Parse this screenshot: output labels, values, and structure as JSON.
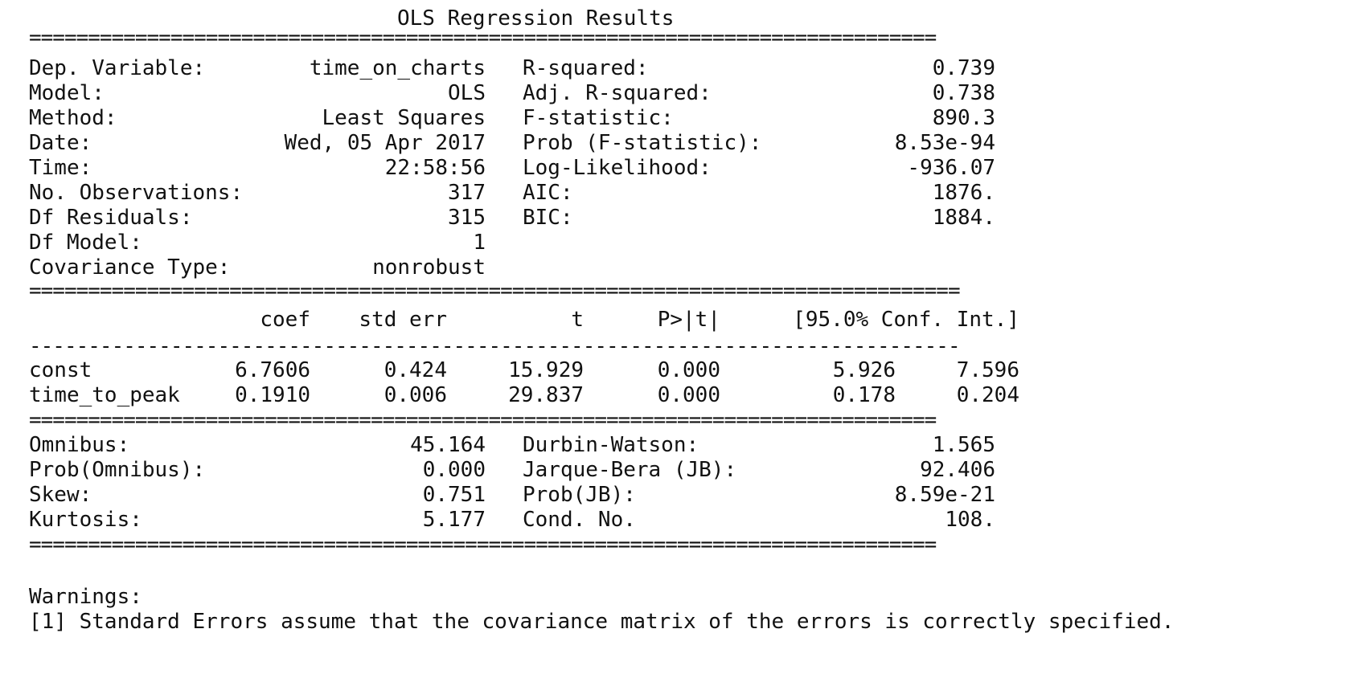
{
  "title": "OLS Regression Results",
  "separators": {
    "double_short": "=============================================================================",
    "double_long": "===============================================================================",
    "single_long": "-------------------------------------------------------------------------------"
  },
  "summary": {
    "left": [
      {
        "label": "Dep. Variable:",
        "value": "time_on_charts"
      },
      {
        "label": "Model:",
        "value": "OLS"
      },
      {
        "label": "Method:",
        "value": "Least Squares"
      },
      {
        "label": "Date:",
        "value": "Wed, 05 Apr 2017"
      },
      {
        "label": "Time:",
        "value": "22:58:56"
      },
      {
        "label": "No. Observations:",
        "value": "317"
      },
      {
        "label": "Df Residuals:",
        "value": "315"
      },
      {
        "label": "Df Model:",
        "value": "1"
      },
      {
        "label": "Covariance Type:",
        "value": "nonrobust"
      }
    ],
    "right": [
      {
        "label": "R-squared:",
        "value": "0.739"
      },
      {
        "label": "Adj. R-squared:",
        "value": "0.738"
      },
      {
        "label": "F-statistic:",
        "value": "890.3"
      },
      {
        "label": "Prob (F-statistic):",
        "value": "8.53e-94"
      },
      {
        "label": "Log-Likelihood:",
        "value": "-936.07"
      },
      {
        "label": "AIC:",
        "value": "1876."
      },
      {
        "label": "BIC:",
        "value": "1884."
      }
    ]
  },
  "coef_table": {
    "headers": [
      "coef",
      "std err",
      "t",
      "P>|t|",
      "[95.0% Conf. Int.]"
    ],
    "rows": [
      {
        "name": "const",
        "coef": "6.7606",
        "std_err": "0.424",
        "t": "15.929",
        "p": "0.000",
        "ci_low": "5.926",
        "ci_high": "7.596"
      },
      {
        "name": "time_to_peak",
        "coef": "0.1910",
        "std_err": "0.006",
        "t": "29.837",
        "p": "0.000",
        "ci_low": "0.178",
        "ci_high": "0.204"
      }
    ]
  },
  "diagnostics": {
    "left": [
      {
        "label": "Omnibus:",
        "value": "45.164"
      },
      {
        "label": "Prob(Omnibus):",
        "value": "0.000"
      },
      {
        "label": "Skew:",
        "value": "0.751"
      },
      {
        "label": "Kurtosis:",
        "value": "5.177"
      }
    ],
    "right": [
      {
        "label": "Durbin-Watson:",
        "value": "1.565"
      },
      {
        "label": "Jarque-Bera (JB):",
        "value": "92.406"
      },
      {
        "label": "Prob(JB):",
        "value": "8.59e-21"
      },
      {
        "label": "Cond. No.",
        "value": "108."
      }
    ]
  },
  "warnings": {
    "heading": "Warnings:",
    "lines": [
      "[1] Standard Errors assume that the covariance matrix of the errors is correctly specified."
    ]
  }
}
